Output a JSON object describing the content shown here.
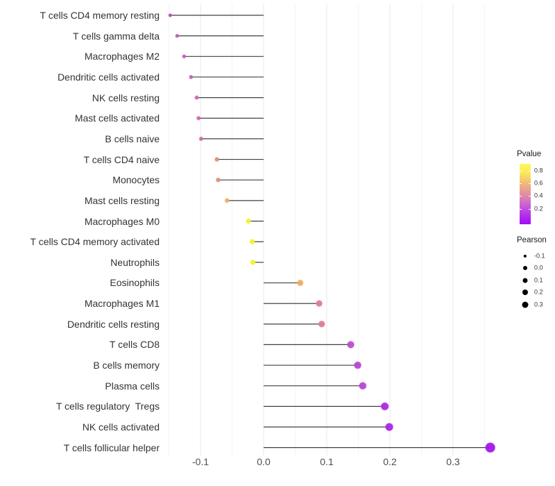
{
  "chart_data": {
    "type": "lollipop",
    "title": "",
    "xlabel": "",
    "ylabel": "",
    "xlim": [
      -0.157,
      0.363
    ],
    "x_ticks": [
      {
        "label": "-0.1",
        "value": -0.1
      },
      {
        "label": "0.0",
        "value": 0.0
      },
      {
        "label": "0.1",
        "value": 0.1
      },
      {
        "label": "0.2",
        "value": 0.2
      },
      {
        "label": "0.3",
        "value": 0.3
      }
    ],
    "minor_grid_values": [
      -0.15,
      -0.05,
      0.05,
      0.15,
      0.25,
      0.35
    ],
    "grid": "vertical major+minor, light gray, no axis lines",
    "rows": [
      {
        "label": "T cells CD4 memory resting",
        "pearson": -0.148,
        "dot_color": "#BC46C6"
      },
      {
        "label": "T cells gamma delta",
        "pearson": -0.137,
        "dot_color": "#C253BE"
      },
      {
        "label": "Macrophages M2",
        "pearson": -0.126,
        "dot_color": "#C65AB7"
      },
      {
        "label": "Dendritic cells activated",
        "pearson": -0.115,
        "dot_color": "#C75FB3"
      },
      {
        "label": "NK cells resting",
        "pearson": -0.106,
        "dot_color": "#CB66AC"
      },
      {
        "label": "Mast cells activated",
        "pearson": -0.103,
        "dot_color": "#CC68AA"
      },
      {
        "label": "B cells naive",
        "pearson": -0.099,
        "dot_color": "#CE6CA6"
      },
      {
        "label": "T cells CD4 naive",
        "pearson": -0.074,
        "dot_color": "#E2906F"
      },
      {
        "label": "Monocytes",
        "pearson": -0.072,
        "dot_color": "#E18E71"
      },
      {
        "label": "Mast cells resting",
        "pearson": -0.058,
        "dot_color": "#EFB064"
      },
      {
        "label": "Macrophages M0",
        "pearson": -0.024,
        "dot_color": "#F6EF33"
      },
      {
        "label": "T cells CD4 memory activated",
        "pearson": -0.018,
        "dot_color": "#F7F12E"
      },
      {
        "label": "Neutrophils",
        "pearson": -0.017,
        "dot_color": "#F7F12E"
      },
      {
        "label": "Eosinophils",
        "pearson": 0.058,
        "dot_color": "#EFAB5D"
      },
      {
        "label": "Macrophages M1",
        "pearson": 0.088,
        "dot_color": "#DD7E91"
      },
      {
        "label": "Dendritic cells resting",
        "pearson": 0.092,
        "dot_color": "#DC7D93"
      },
      {
        "label": "T cells CD8",
        "pearson": 0.138,
        "dot_color": "#BC4DCC"
      },
      {
        "label": "B cells memory",
        "pearson": 0.149,
        "dot_color": "#B845D2"
      },
      {
        "label": "Plasma cells",
        "pearson": 0.157,
        "dot_color": "#B946D4"
      },
      {
        "label": "T cells regulatory  Tregs",
        "pearson": 0.192,
        "dot_color": "#A92BE2"
      },
      {
        "label": "NK cells activated",
        "pearson": 0.199,
        "dot_color": "#A827E5"
      },
      {
        "label": "T cells follicular helper",
        "pearson": 0.359,
        "dot_color": "#A117EE"
      }
    ]
  },
  "legends": {
    "pvalue": {
      "title": "Pvalue",
      "gradient_top_to_bottom": [
        "#FCFA55",
        "#FAEA5E",
        "#F3C36F",
        "#E79E92",
        "#DB7FB4",
        "#C557D9",
        "#B02FEA",
        "#A608F9"
      ],
      "ticks": [
        {
          "label": "0.8",
          "y": 245.5
        },
        {
          "label": "0.6",
          "y": 263.5
        },
        {
          "label": "0.4",
          "y": 282.0
        },
        {
          "label": "0.2",
          "y": 300.5
        }
      ]
    },
    "pearson": {
      "title": "Pearson",
      "items": [
        {
          "label": "-0.1",
          "diameter": 4.3
        },
        {
          "label": "0.0",
          "diameter": 6.0
        },
        {
          "label": "0.1",
          "diameter": 7.0
        },
        {
          "label": "0.2",
          "diameter": 8.0
        },
        {
          "label": "0.3",
          "diameter": 9.0
        }
      ]
    }
  },
  "colors": {
    "stem": "#3f3f3f",
    "grid_major": "#e8e8e8",
    "grid_minor": "#f4f4f4",
    "axis_text": "#4d4d4d",
    "category_text": "#333333"
  }
}
